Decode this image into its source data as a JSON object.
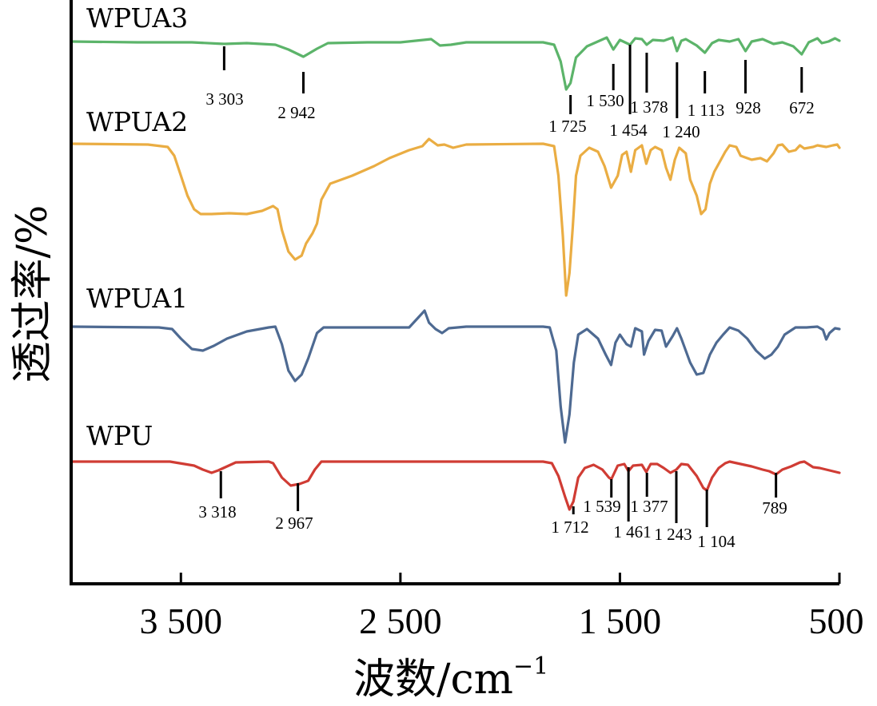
{
  "chart_data": {
    "type": "line",
    "xlabel": "波数/cm",
    "xlabel_sup": "−1",
    "ylabel": "透过率/%",
    "xlim": [
      4000,
      500
    ],
    "x_reversed": true,
    "y_ticks_shown": false,
    "grid": false,
    "legend": "none (series labels printed above each curve)",
    "x_ticks": [
      {
        "value": 3500,
        "label": "3 500"
      },
      {
        "value": 2500,
        "label": "2 500"
      },
      {
        "value": 1500,
        "label": "1 500"
      },
      {
        "value": 500,
        "label": "500"
      }
    ],
    "series": [
      {
        "name": "WPUA3",
        "color": "#5cb46a",
        "points": [
          [
            4000,
            0
          ],
          [
            3700,
            -1
          ],
          [
            3450,
            -1
          ],
          [
            3303,
            -3
          ],
          [
            3200,
            -2
          ],
          [
            3070,
            -4
          ],
          [
            3010,
            -10
          ],
          [
            2942,
            -19
          ],
          [
            2880,
            -9
          ],
          [
            2830,
            -2
          ],
          [
            2650,
            -1
          ],
          [
            2500,
            -1
          ],
          [
            2360,
            3
          ],
          [
            2320,
            -5
          ],
          [
            2270,
            -4
          ],
          [
            2200,
            -1
          ],
          [
            1850,
            -1
          ],
          [
            1800,
            -4
          ],
          [
            1770,
            -25
          ],
          [
            1745,
            -60
          ],
          [
            1725,
            -52
          ],
          [
            1700,
            -20
          ],
          [
            1650,
            -6
          ],
          [
            1560,
            5
          ],
          [
            1530,
            -10
          ],
          [
            1500,
            2
          ],
          [
            1454,
            -4
          ],
          [
            1430,
            4
          ],
          [
            1400,
            3
          ],
          [
            1378,
            -4
          ],
          [
            1350,
            2
          ],
          [
            1300,
            1
          ],
          [
            1260,
            5
          ],
          [
            1240,
            -12
          ],
          [
            1220,
            1
          ],
          [
            1200,
            3
          ],
          [
            1150,
            -5
          ],
          [
            1113,
            -14
          ],
          [
            1080,
            -2
          ],
          [
            1050,
            2
          ],
          [
            1000,
            0
          ],
          [
            960,
            3
          ],
          [
            928,
            -12
          ],
          [
            900,
            0
          ],
          [
            850,
            3
          ],
          [
            800,
            -3
          ],
          [
            760,
            -1
          ],
          [
            710,
            -6
          ],
          [
            672,
            -16
          ],
          [
            640,
            -1
          ],
          [
            600,
            4
          ],
          [
            580,
            -2
          ],
          [
            550,
            0
          ],
          [
            520,
            4
          ],
          [
            500,
            1
          ]
        ],
        "peak_labels": [
          {
            "x": 3303,
            "label": "3 303"
          },
          {
            "x": 2942,
            "label": "2 942"
          },
          {
            "x": 1725,
            "label": "1 725"
          },
          {
            "x": 1530,
            "label": "1 530"
          },
          {
            "x": 1454,
            "label": "1 454"
          },
          {
            "x": 1378,
            "label": "1 378"
          },
          {
            "x": 1240,
            "label": "1 240"
          },
          {
            "x": 1113,
            "label": "1 113"
          },
          {
            "x": 928,
            "label": "928"
          },
          {
            "x": 672,
            "label": "672"
          }
        ]
      },
      {
        "name": "WPUA2",
        "color": "#eaad43",
        "points": [
          [
            4000,
            0
          ],
          [
            3650,
            -1
          ],
          [
            3560,
            -4
          ],
          [
            3530,
            -15
          ],
          [
            3500,
            -40
          ],
          [
            3470,
            -65
          ],
          [
            3440,
            -82
          ],
          [
            3410,
            -88
          ],
          [
            3360,
            -88
          ],
          [
            3280,
            -87
          ],
          [
            3200,
            -88
          ],
          [
            3130,
            -84
          ],
          [
            3080,
            -78
          ],
          [
            3060,
            -82
          ],
          [
            3040,
            -108
          ],
          [
            3010,
            -135
          ],
          [
            2980,
            -145
          ],
          [
            2950,
            -140
          ],
          [
            2930,
            -125
          ],
          [
            2900,
            -112
          ],
          [
            2880,
            -100
          ],
          [
            2860,
            -70
          ],
          [
            2820,
            -50
          ],
          [
            2720,
            -40
          ],
          [
            2620,
            -28
          ],
          [
            2550,
            -18
          ],
          [
            2460,
            -8
          ],
          [
            2400,
            -3
          ],
          [
            2370,
            6
          ],
          [
            2330,
            -2
          ],
          [
            2300,
            -1
          ],
          [
            2260,
            -5
          ],
          [
            2200,
            -1
          ],
          [
            1850,
            0
          ],
          [
            1800,
            -3
          ],
          [
            1780,
            -40
          ],
          [
            1760,
            -115
          ],
          [
            1745,
            -190
          ],
          [
            1730,
            -162
          ],
          [
            1715,
            -105
          ],
          [
            1700,
            -40
          ],
          [
            1680,
            -15
          ],
          [
            1640,
            -5
          ],
          [
            1600,
            -10
          ],
          [
            1570,
            -28
          ],
          [
            1540,
            -55
          ],
          [
            1510,
            -40
          ],
          [
            1490,
            -14
          ],
          [
            1470,
            -10
          ],
          [
            1450,
            -35
          ],
          [
            1430,
            -8
          ],
          [
            1400,
            -2
          ],
          [
            1380,
            -25
          ],
          [
            1360,
            -8
          ],
          [
            1340,
            -4
          ],
          [
            1310,
            -8
          ],
          [
            1290,
            -30
          ],
          [
            1270,
            -45
          ],
          [
            1250,
            -20
          ],
          [
            1230,
            -5
          ],
          [
            1200,
            -12
          ],
          [
            1180,
            -45
          ],
          [
            1150,
            -65
          ],
          [
            1130,
            -88
          ],
          [
            1110,
            -82
          ],
          [
            1090,
            -50
          ],
          [
            1070,
            -35
          ],
          [
            1050,
            -25
          ],
          [
            1020,
            -10
          ],
          [
            1000,
            -2
          ],
          [
            970,
            -4
          ],
          [
            950,
            -15
          ],
          [
            900,
            -20
          ],
          [
            860,
            -18
          ],
          [
            830,
            -22
          ],
          [
            800,
            -12
          ],
          [
            780,
            -2
          ],
          [
            760,
            -1
          ],
          [
            730,
            -10
          ],
          [
            700,
            -8
          ],
          [
            680,
            -2
          ],
          [
            660,
            -6
          ],
          [
            620,
            -4
          ],
          [
            600,
            -2
          ],
          [
            560,
            -4
          ],
          [
            530,
            -2
          ],
          [
            510,
            -1
          ],
          [
            500,
            -5
          ]
        ]
      },
      {
        "name": "WPUA1",
        "color": "#4e6a92",
        "points": [
          [
            4000,
            0
          ],
          [
            3600,
            -1
          ],
          [
            3540,
            -3
          ],
          [
            3500,
            -15
          ],
          [
            3450,
            -28
          ],
          [
            3400,
            -30
          ],
          [
            3350,
            -24
          ],
          [
            3290,
            -15
          ],
          [
            3200,
            -6
          ],
          [
            3100,
            -1
          ],
          [
            3070,
            0
          ],
          [
            3040,
            -22
          ],
          [
            3010,
            -55
          ],
          [
            2980,
            -68
          ],
          [
            2950,
            -60
          ],
          [
            2920,
            -40
          ],
          [
            2880,
            -8
          ],
          [
            2850,
            -1
          ],
          [
            2600,
            -1
          ],
          [
            2460,
            -1
          ],
          [
            2390,
            20
          ],
          [
            2370,
            5
          ],
          [
            2340,
            -3
          ],
          [
            2310,
            -8
          ],
          [
            2280,
            -2
          ],
          [
            2200,
            0
          ],
          [
            1850,
            0
          ],
          [
            1820,
            -1
          ],
          [
            1790,
            -30
          ],
          [
            1770,
            -100
          ],
          [
            1750,
            -145
          ],
          [
            1730,
            -110
          ],
          [
            1710,
            -45
          ],
          [
            1690,
            -10
          ],
          [
            1650,
            -3
          ],
          [
            1600,
            -15
          ],
          [
            1565,
            -35
          ],
          [
            1540,
            -48
          ],
          [
            1520,
            -20
          ],
          [
            1500,
            -10
          ],
          [
            1470,
            -22
          ],
          [
            1450,
            -25
          ],
          [
            1430,
            -2
          ],
          [
            1400,
            -6
          ],
          [
            1390,
            -35
          ],
          [
            1370,
            -18
          ],
          [
            1340,
            -4
          ],
          [
            1310,
            -5
          ],
          [
            1290,
            -25
          ],
          [
            1260,
            -12
          ],
          [
            1240,
            -2
          ],
          [
            1220,
            -15
          ],
          [
            1180,
            -45
          ],
          [
            1150,
            -60
          ],
          [
            1120,
            -58
          ],
          [
            1090,
            -35
          ],
          [
            1060,
            -20
          ],
          [
            1030,
            -10
          ],
          [
            1000,
            -1
          ],
          [
            960,
            -5
          ],
          [
            920,
            -15
          ],
          [
            880,
            -30
          ],
          [
            840,
            -40
          ],
          [
            810,
            -35
          ],
          [
            780,
            -25
          ],
          [
            750,
            -10
          ],
          [
            700,
            -1
          ],
          [
            650,
            -1
          ],
          [
            600,
            0
          ],
          [
            575,
            -4
          ],
          [
            560,
            -16
          ],
          [
            545,
            -8
          ],
          [
            520,
            -2
          ],
          [
            500,
            -3
          ]
        ]
      },
      {
        "name": "WPU",
        "color": "#d03c34",
        "points": [
          [
            4000,
            0
          ],
          [
            3550,
            0
          ],
          [
            3440,
            -5
          ],
          [
            3400,
            -10
          ],
          [
            3360,
            -14
          ],
          [
            3330,
            -11
          ],
          [
            3250,
            -1
          ],
          [
            3100,
            0
          ],
          [
            3080,
            -2
          ],
          [
            3040,
            -20
          ],
          [
            3000,
            -30
          ],
          [
            2960,
            -28
          ],
          [
            2920,
            -24
          ],
          [
            2890,
            -10
          ],
          [
            2860,
            0
          ],
          [
            2500,
            0
          ],
          [
            1850,
            0
          ],
          [
            1810,
            -2
          ],
          [
            1780,
            -18
          ],
          [
            1750,
            -44
          ],
          [
            1730,
            -60
          ],
          [
            1712,
            -50
          ],
          [
            1690,
            -20
          ],
          [
            1660,
            -8
          ],
          [
            1620,
            -4
          ],
          [
            1580,
            -10
          ],
          [
            1550,
            -20
          ],
          [
            1539,
            -22
          ],
          [
            1510,
            -5
          ],
          [
            1480,
            -3
          ],
          [
            1461,
            -12
          ],
          [
            1440,
            -5
          ],
          [
            1400,
            -4
          ],
          [
            1380,
            -13
          ],
          [
            1360,
            -3
          ],
          [
            1330,
            -3
          ],
          [
            1300,
            -8
          ],
          [
            1270,
            -14
          ],
          [
            1243,
            -10
          ],
          [
            1220,
            -3
          ],
          [
            1190,
            -4
          ],
          [
            1150,
            -18
          ],
          [
            1120,
            -33
          ],
          [
            1104,
            -36
          ],
          [
            1080,
            -20
          ],
          [
            1050,
            -8
          ],
          [
            1020,
            -2
          ],
          [
            1000,
            0
          ],
          [
            950,
            -3
          ],
          [
            900,
            -6
          ],
          [
            850,
            -10
          ],
          [
            820,
            -12
          ],
          [
            789,
            -16
          ],
          [
            760,
            -10
          ],
          [
            720,
            -6
          ],
          [
            680,
            -1
          ],
          [
            660,
            0
          ],
          [
            620,
            -7
          ],
          [
            590,
            -8
          ],
          [
            560,
            -10
          ],
          [
            530,
            -12
          ],
          [
            500,
            -14
          ]
        ],
        "peak_labels": [
          {
            "x": 3318,
            "label": "3 318"
          },
          {
            "x": 2967,
            "label": "2 967"
          },
          {
            "x": 1712,
            "label": "1 712"
          },
          {
            "x": 1539,
            "label": "1 539"
          },
          {
            "x": 1461,
            "label": "1 461"
          },
          {
            "x": 1377,
            "label": "1 377"
          },
          {
            "x": 1243,
            "label": "1 243"
          },
          {
            "x": 1104,
            "label": "1 104"
          },
          {
            "x": 789,
            "label": "789"
          }
        ]
      }
    ]
  }
}
